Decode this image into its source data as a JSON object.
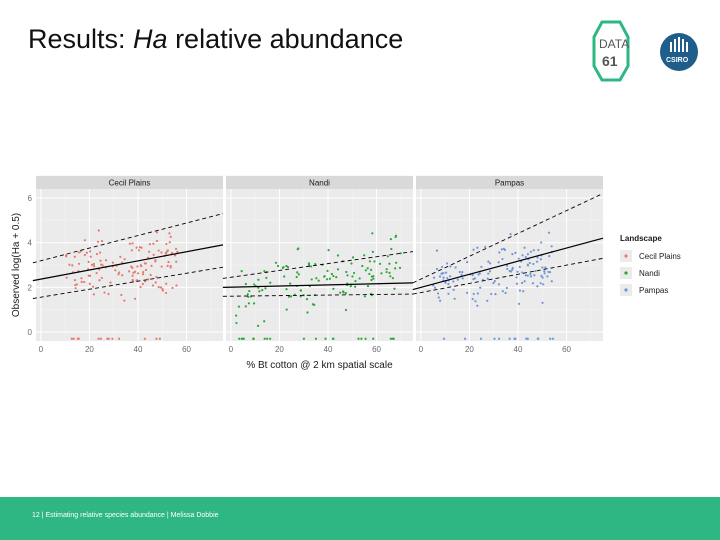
{
  "slide": {
    "title_prefix": "Results: ",
    "title_italic": "Ha",
    "title_suffix": " relative abundance",
    "footer": "12  |  Estimating relative species abundance  |  Melissa Dobbie",
    "logo_data61_line1": "DATA",
    "logo_data61_line2": "61",
    "logo_csiro": "CSIRO"
  },
  "colors": {
    "footer": "#2fb783",
    "panel_bg": "#ebebeb",
    "strip_bg": "#d9d9d9",
    "cecil": "#e8776b",
    "nandi": "#2aa836",
    "pampas": "#6f95d9"
  },
  "chart_data": {
    "type": "scatter",
    "title": "",
    "xlabel": "% Bt cotton @ 2 km spatial scale",
    "ylabel": "Observed log(Ha + 0.5)",
    "xlim": [
      -2,
      75
    ],
    "ylim": [
      -0.4,
      6.4
    ],
    "xticks": [
      0,
      20,
      40,
      60
    ],
    "yticks": [
      0,
      2,
      4,
      6
    ],
    "panels": [
      {
        "name": "Cecil Plains",
        "color_key": "cecil",
        "x_range": [
          10,
          57
        ],
        "y_center": 2.9,
        "fit": {
          "y_at_0": 2.3,
          "y_at_70": 3.9
        },
        "lower_ci": {
          "y_at_0": 1.5,
          "y_at_70": 2.9
        },
        "upper_ci": {
          "y_at_0": 3.1,
          "y_at_70": 5.3
        }
      },
      {
        "name": "Nandi",
        "color_key": "nandi",
        "x_range": [
          2,
          70
        ],
        "y_center": 2.3,
        "fit": {
          "y_at_0": 2.0,
          "y_at_70": 2.2
        },
        "lower_ci": {
          "y_at_0": 1.6,
          "y_at_70": 1.7
        },
        "upper_ci": {
          "y_at_0": 2.4,
          "y_at_70": 3.6
        }
      },
      {
        "name": "Pampas",
        "color_key": "pampas",
        "x_range": [
          5,
          55
        ],
        "y_center": 2.6,
        "fit": {
          "y_at_0": 1.9,
          "y_at_70": 4.2
        },
        "lower_ci": {
          "y_at_0": 1.7,
          "y_at_70": 3.3
        },
        "upper_ci": {
          "y_at_0": 2.2,
          "y_at_70": 6.2
        }
      }
    ],
    "legend": {
      "title": "Landscape",
      "position": "right",
      "entries": [
        "Cecil Plains",
        "Nandi",
        "Pampas"
      ]
    }
  }
}
